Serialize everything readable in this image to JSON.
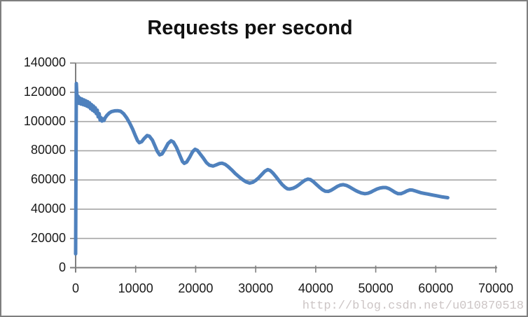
{
  "title": "Requests per second",
  "watermark": "http://blog.csdn.net/u010870518",
  "colors": {
    "line": "#4F81BD",
    "gridline": "#A6A6A6",
    "axis": "#7F7F7F",
    "tick": "#7F7F7F",
    "label": "#1a1a1a",
    "title": "#111111",
    "watermark": "#ccc5c5",
    "border": "#7F7F7F",
    "background": "#FFFFFF"
  },
  "chart_data": {
    "type": "line",
    "title": "Requests per second",
    "xlabel": "",
    "ylabel": "",
    "xlim": [
      0,
      70000
    ],
    "ylim": [
      0,
      140000
    ],
    "x_ticks": [
      0,
      10000,
      20000,
      30000,
      40000,
      50000,
      60000,
      70000
    ],
    "y_ticks": [
      0,
      20000,
      40000,
      60000,
      80000,
      100000,
      120000,
      140000
    ],
    "grid": "horizontal-only",
    "legend_position": "none",
    "series": [
      {
        "name": "Requests per second",
        "points": [
          [
            0,
            9500
          ],
          [
            120,
            126000
          ],
          [
            260,
            113500
          ],
          [
            420,
            117200
          ],
          [
            560,
            112400
          ],
          [
            720,
            116000
          ],
          [
            880,
            112000
          ],
          [
            1040,
            115400
          ],
          [
            1200,
            111600
          ],
          [
            1360,
            114800
          ],
          [
            1520,
            111200
          ],
          [
            1680,
            114200
          ],
          [
            1840,
            110600
          ],
          [
            2000,
            113600
          ],
          [
            2160,
            110000
          ],
          [
            2320,
            112800
          ],
          [
            2480,
            108800
          ],
          [
            2640,
            111600
          ],
          [
            2800,
            107800
          ],
          [
            2960,
            110600
          ],
          [
            3120,
            106800
          ],
          [
            3280,
            109400
          ],
          [
            3440,
            105400
          ],
          [
            3600,
            107800
          ],
          [
            3760,
            103200
          ],
          [
            3920,
            105400
          ],
          [
            4080,
            100900
          ],
          [
            4240,
            102600
          ],
          [
            4400,
            100300
          ],
          [
            4560,
            101800
          ],
          [
            4720,
            100700
          ],
          [
            4900,
            102400
          ],
          [
            5200,
            104200
          ],
          [
            5600,
            105800
          ],
          [
            6000,
            106800
          ],
          [
            6500,
            107300
          ],
          [
            7000,
            107400
          ],
          [
            7500,
            107000
          ],
          [
            8000,
            105300
          ],
          [
            8500,
            102500
          ],
          [
            9000,
            99000
          ],
          [
            9500,
            94800
          ],
          [
            10000,
            89800
          ],
          [
            10300,
            87000
          ],
          [
            10600,
            85500
          ],
          [
            11000,
            86200
          ],
          [
            11400,
            88300
          ],
          [
            11900,
            90400
          ],
          [
            12300,
            89900
          ],
          [
            12800,
            87200
          ],
          [
            13200,
            83500
          ],
          [
            13600,
            79600
          ],
          [
            14000,
            77200
          ],
          [
            14400,
            77800
          ],
          [
            14900,
            81200
          ],
          [
            15400,
            85000
          ],
          [
            15900,
            86800
          ],
          [
            16300,
            85900
          ],
          [
            16800,
            82300
          ],
          [
            17300,
            77400
          ],
          [
            17800,
            72600
          ],
          [
            18100,
            71400
          ],
          [
            18500,
            72300
          ],
          [
            19000,
            75600
          ],
          [
            19500,
            79400
          ],
          [
            19900,
            81000
          ],
          [
            20300,
            80200
          ],
          [
            20800,
            77500
          ],
          [
            21300,
            74800
          ],
          [
            21800,
            71800
          ],
          [
            22300,
            70100
          ],
          [
            22900,
            69500
          ],
          [
            23400,
            70300
          ],
          [
            24000,
            71300
          ],
          [
            24400,
            71500
          ],
          [
            24900,
            70700
          ],
          [
            25400,
            69200
          ],
          [
            26000,
            66900
          ],
          [
            26600,
            64400
          ],
          [
            27200,
            62300
          ],
          [
            27800,
            60300
          ],
          [
            28400,
            58700
          ],
          [
            29000,
            57900
          ],
          [
            29500,
            58400
          ],
          [
            30000,
            59700
          ],
          [
            30500,
            61500
          ],
          [
            31000,
            63700
          ],
          [
            31500,
            65900
          ],
          [
            32000,
            67100
          ],
          [
            32400,
            66500
          ],
          [
            32900,
            64600
          ],
          [
            33400,
            62100
          ],
          [
            33900,
            59400
          ],
          [
            34400,
            56900
          ],
          [
            34900,
            55000
          ],
          [
            35300,
            53900
          ],
          [
            35700,
            53800
          ],
          [
            36200,
            54300
          ],
          [
            36700,
            55300
          ],
          [
            37200,
            56700
          ],
          [
            37700,
            58300
          ],
          [
            38200,
            59800
          ],
          [
            38700,
            60600
          ],
          [
            39100,
            60300
          ],
          [
            39600,
            58900
          ],
          [
            40100,
            57000
          ],
          [
            40600,
            55100
          ],
          [
            41100,
            53400
          ],
          [
            41600,
            52300
          ],
          [
            42100,
            52200
          ],
          [
            42600,
            53000
          ],
          [
            43100,
            54300
          ],
          [
            43600,
            55600
          ],
          [
            44100,
            56500
          ],
          [
            44600,
            56800
          ],
          [
            45100,
            56300
          ],
          [
            45600,
            55300
          ],
          [
            46100,
            54100
          ],
          [
            46600,
            52900
          ],
          [
            47100,
            51900
          ],
          [
            47600,
            51100
          ],
          [
            48200,
            50600
          ],
          [
            48700,
            50900
          ],
          [
            49200,
            51700
          ],
          [
            49700,
            52800
          ],
          [
            50200,
            53800
          ],
          [
            50700,
            54500
          ],
          [
            51200,
            54800
          ],
          [
            51700,
            54800
          ],
          [
            52200,
            54100
          ],
          [
            52700,
            52900
          ],
          [
            53200,
            51600
          ],
          [
            53700,
            50600
          ],
          [
            54200,
            50600
          ],
          [
            54700,
            51400
          ],
          [
            55200,
            52500
          ],
          [
            55700,
            53200
          ],
          [
            56100,
            53100
          ],
          [
            56600,
            52500
          ],
          [
            57100,
            51800
          ],
          [
            57600,
            51200
          ],
          [
            58100,
            50800
          ],
          [
            58600,
            50400
          ],
          [
            59100,
            50000
          ],
          [
            59600,
            49600
          ],
          [
            60100,
            49200
          ],
          [
            60600,
            48800
          ],
          [
            61100,
            48400
          ],
          [
            61600,
            48100
          ],
          [
            62000,
            47900
          ]
        ]
      }
    ]
  }
}
